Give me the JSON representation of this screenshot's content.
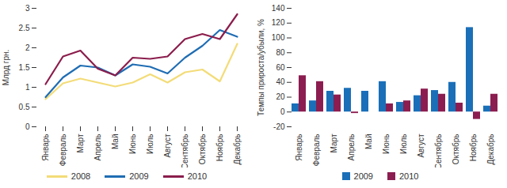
{
  "chart_data": [
    {
      "type": "line",
      "y_label": "Млрд грн.",
      "categories": [
        "Январь",
        "Февраль",
        "Март",
        "Апрель",
        "Май",
        "Июнь",
        "Июль",
        "Август",
        "Сентябрь",
        "Октябрь",
        "Ноябрь",
        "Декабрь"
      ],
      "series": [
        {
          "name": "2008",
          "color": "#f3dc78",
          "values": [
            0.7,
            1.1,
            1.22,
            1.12,
            1.02,
            1.12,
            1.33,
            1.12,
            1.38,
            1.45,
            1.15,
            2.1
          ]
        },
        {
          "name": "2009",
          "color": "#1f6db3",
          "values": [
            0.75,
            1.25,
            1.55,
            1.5,
            1.3,
            1.58,
            1.52,
            1.35,
            1.75,
            2.05,
            2.45,
            2.28
          ]
        },
        {
          "name": "2010",
          "color": "#8b1d4c",
          "values": [
            1.08,
            1.78,
            1.93,
            1.47,
            1.3,
            1.75,
            1.72,
            1.78,
            2.22,
            2.35,
            2.22,
            2.85
          ]
        }
      ],
      "ylim": [
        0,
        3
      ],
      "yticks": [
        0,
        0.5,
        1,
        1.5,
        2,
        2.5,
        3
      ],
      "grid": false,
      "legend": "bottom"
    },
    {
      "type": "bar",
      "y_label": "Темпы прироста/убыли, %",
      "categories": [
        "Январь",
        "Февраль",
        "Март",
        "Апрель",
        "Май",
        "Июнь",
        "Июль",
        "Август",
        "Сентябрь",
        "Октябрь",
        "Ноябрь",
        "Декабрь"
      ],
      "series": [
        {
          "name": "2009",
          "color": "#1a6fb8",
          "values": [
            11,
            15,
            28,
            32,
            28,
            41,
            13,
            22,
            29,
            40,
            114,
            8
          ]
        },
        {
          "name": "2010",
          "color": "#8c1d50",
          "values": [
            49,
            41,
            23,
            -2,
            0,
            11,
            15,
            31,
            24,
            12,
            -10,
            24
          ]
        }
      ],
      "ylim": [
        -20,
        140
      ],
      "yticks": [
        -20,
        0,
        20,
        40,
        60,
        80,
        100,
        120,
        140
      ],
      "grid": false,
      "legend": "bottom"
    }
  ]
}
